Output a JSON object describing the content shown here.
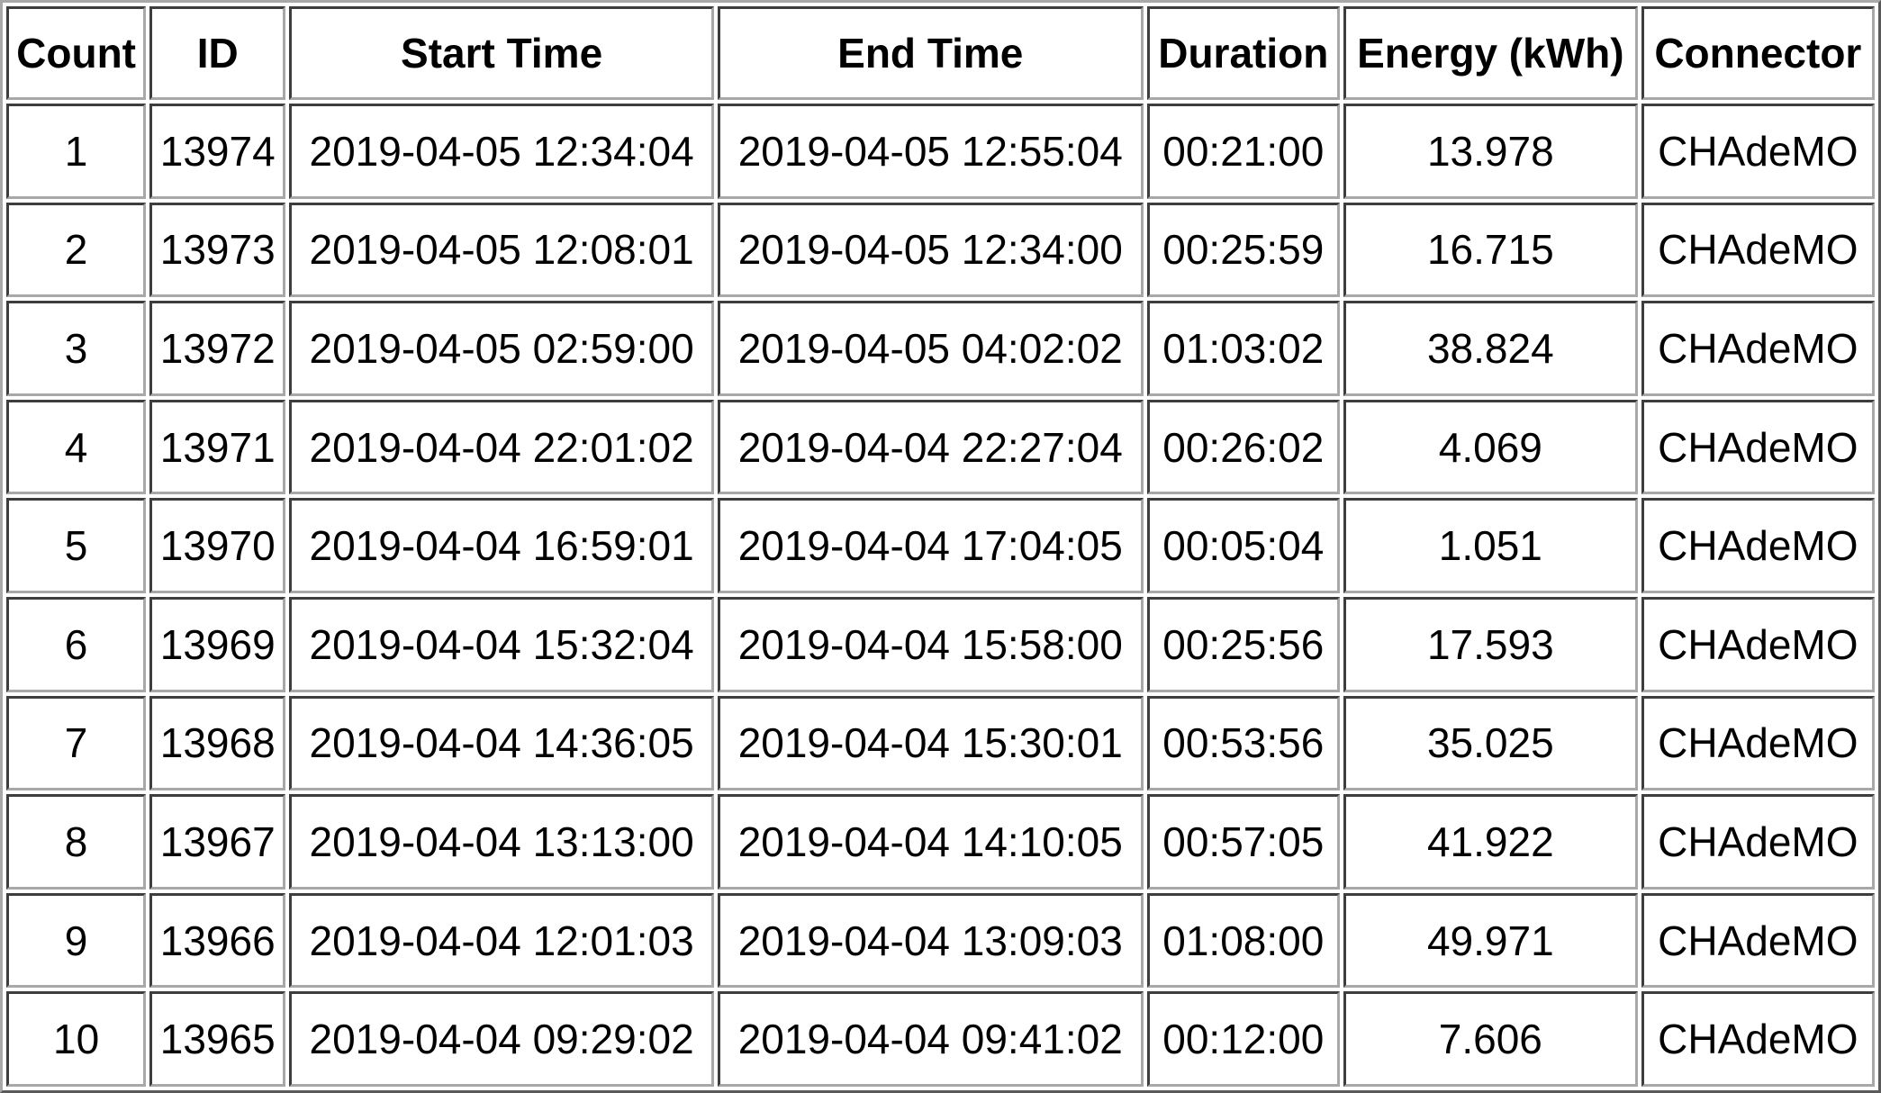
{
  "table": {
    "headers": [
      "Count",
      "ID",
      "Start Time",
      "End Time",
      "Duration",
      "Energy (kWh)",
      "Connector"
    ],
    "rows": [
      [
        "1",
        "13974",
        "2019-04-05 12:34:04",
        "2019-04-05 12:55:04",
        "00:21:00",
        "13.978",
        "CHAdeMO"
      ],
      [
        "2",
        "13973",
        "2019-04-05 12:08:01",
        "2019-04-05 12:34:00",
        "00:25:59",
        "16.715",
        "CHAdeMO"
      ],
      [
        "3",
        "13972",
        "2019-04-05 02:59:00",
        "2019-04-05 04:02:02",
        "01:03:02",
        "38.824",
        "CHAdeMO"
      ],
      [
        "4",
        "13971",
        "2019-04-04 22:01:02",
        "2019-04-04 22:27:04",
        "00:26:02",
        "4.069",
        "CHAdeMO"
      ],
      [
        "5",
        "13970",
        "2019-04-04 16:59:01",
        "2019-04-04 17:04:05",
        "00:05:04",
        "1.051",
        "CHAdeMO"
      ],
      [
        "6",
        "13969",
        "2019-04-04 15:32:04",
        "2019-04-04 15:58:00",
        "00:25:56",
        "17.593",
        "CHAdeMO"
      ],
      [
        "7",
        "13968",
        "2019-04-04 14:36:05",
        "2019-04-04 15:30:01",
        "00:53:56",
        "35.025",
        "CHAdeMO"
      ],
      [
        "8",
        "13967",
        "2019-04-04 13:13:00",
        "2019-04-04 14:10:05",
        "00:57:05",
        "41.922",
        "CHAdeMO"
      ],
      [
        "9",
        "13966",
        "2019-04-04 12:01:03",
        "2019-04-04 13:09:03",
        "01:08:00",
        "49.971",
        "CHAdeMO"
      ],
      [
        "10",
        "13965",
        "2019-04-04 09:29:02",
        "2019-04-04 09:41:02",
        "00:12:00",
        "7.606",
        "CHAdeMO"
      ]
    ]
  }
}
